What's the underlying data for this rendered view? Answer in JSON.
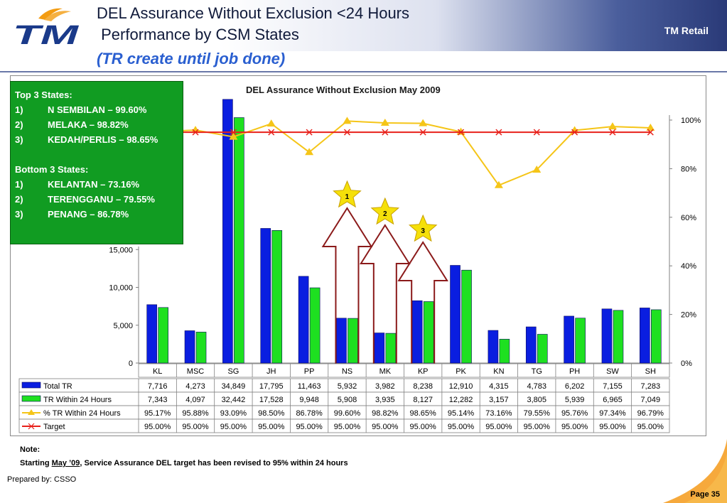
{
  "header": {
    "logo_text": "TM",
    "title_line1": "DEL Assurance Without Exclusion <24 Hours",
    "title_line2": " Performance by CSM States",
    "title_line3": "(TR create until job done)",
    "brand_label": "TM Retail"
  },
  "callout": {
    "top_heading": "Top 3 States:",
    "top": [
      {
        "num": "1)",
        "text": "N SEMBILAN – 99.60%"
      },
      {
        "num": "2)",
        "text": "MELAKA – 98.82%"
      },
      {
        "num": "3)",
        "text": "KEDAH/PERLIS – 98.65%"
      }
    ],
    "bottom_heading": "Bottom 3 States:",
    "bottom": [
      {
        "num": "1)",
        "text": "KELANTAN – 73.16%"
      },
      {
        "num": "2)",
        "text": "TERENGGANU – 79.55%"
      },
      {
        "num": "3)",
        "text": "PENANG – 86.78%"
      }
    ]
  },
  "chart_data": {
    "type": "bar",
    "title": "DEL Assurance Without Exclusion May 2009",
    "categories": [
      "KL",
      "MSC",
      "SG",
      "JH",
      "PP",
      "NS",
      "MK",
      "KP",
      "PK",
      "KN",
      "TG",
      "PH",
      "SW",
      "SH"
    ],
    "series": [
      {
        "name": "Total TR",
        "kind": "bar",
        "axis": "left",
        "color": "#0a1ee0",
        "values": [
          7716,
          4273,
          34849,
          17795,
          11463,
          5932,
          3982,
          8238,
          12910,
          4315,
          4783,
          6202,
          7155,
          7283
        ],
        "labels": [
          "7,716",
          "4,273",
          "34,849",
          "17,795",
          "11,463",
          "5,932",
          "3,982",
          "8,238",
          "12,910",
          "4,315",
          "4,783",
          "6,202",
          "7,155",
          "7,283"
        ]
      },
      {
        "name": "TR Within 24 Hours",
        "kind": "bar",
        "axis": "left",
        "color": "#1ee020",
        "values": [
          7343,
          4097,
          32442,
          17528,
          9948,
          5908,
          3935,
          8127,
          12282,
          3157,
          3805,
          5939,
          6965,
          7049
        ],
        "labels": [
          "7,343",
          "4,097",
          "32,442",
          "17,528",
          "9,948",
          "5,908",
          "3,935",
          "8,127",
          "12,282",
          "3,157",
          "3,805",
          "5,939",
          "6,965",
          "7,049"
        ]
      },
      {
        "name": "% TR Within 24 Hours",
        "kind": "line",
        "axis": "right",
        "color": "#f5c518",
        "values": [
          95.17,
          95.88,
          93.09,
          98.5,
          86.78,
          99.6,
          98.82,
          98.65,
          95.14,
          73.16,
          79.55,
          95.76,
          97.34,
          96.79
        ],
        "labels": [
          "95.17%",
          "95.88%",
          "93.09%",
          "98.50%",
          "86.78%",
          "99.60%",
          "98.82%",
          "98.65%",
          "95.14%",
          "73.16%",
          "79.55%",
          "95.76%",
          "97.34%",
          "96.79%"
        ]
      },
      {
        "name": "Target",
        "kind": "line",
        "axis": "right",
        "color": "#e8201a",
        "values": [
          95,
          95,
          95,
          95,
          95,
          95,
          95,
          95,
          95,
          95,
          95,
          95,
          95,
          95
        ],
        "labels": [
          "95.00%",
          "95.00%",
          "95.00%",
          "95.00%",
          "95.00%",
          "95.00%",
          "95.00%",
          "95.00%",
          "95.00%",
          "95.00%",
          "95.00%",
          "95.00%",
          "95.00%",
          "95.00%"
        ]
      }
    ],
    "ylim_left": [
      0,
      40000
    ],
    "yticks_left": [
      {
        "v": 0,
        "label": "0"
      },
      {
        "v": 5000,
        "label": "5,000"
      },
      {
        "v": 10000,
        "label": "10,000"
      },
      {
        "v": 15000,
        "label": "15,000"
      }
    ],
    "ylim_right": [
      0,
      100
    ],
    "yticks_right": [
      {
        "v": 0,
        "label": "0%"
      },
      {
        "v": 20,
        "label": "20%"
      },
      {
        "v": 40,
        "label": "40%"
      },
      {
        "v": 60,
        "label": "60%"
      },
      {
        "v": 80,
        "label": "80%"
      },
      {
        "v": 100,
        "label": "100%"
      }
    ],
    "highlights": [
      {
        "category": "NS",
        "rank": "1"
      },
      {
        "category": "MK",
        "rank": "2"
      },
      {
        "category": "KP",
        "rank": "3"
      }
    ],
    "legend": "data-table"
  },
  "note": {
    "label": "Note:",
    "prefix": "Starting ",
    "underlined": "May ’09",
    "suffix": ", Service Assurance DEL target has been revised to 95% within 24 hours"
  },
  "footer": {
    "prepared_by": "Prepared by: CSSO",
    "page": "Page 35"
  },
  "colors": {
    "header_dark": "#2a3a78",
    "title_blue": "#2a5fd0",
    "callout_green": "#119c22",
    "highlight_arrow": "#8b1a1a",
    "star_fill": "#f5e00a",
    "corner_orange": "#f59a1a"
  }
}
